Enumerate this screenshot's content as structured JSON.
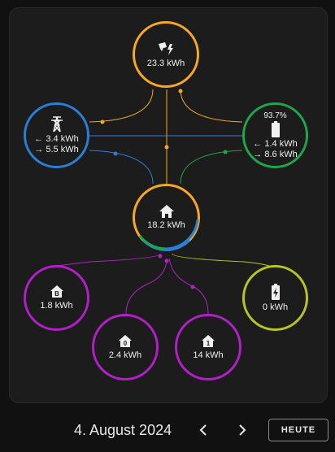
{
  "colors": {
    "solar": "#f6a823",
    "grid": "#2a7fd6",
    "battery": "#1fa64a",
    "home_individual": "#b21fc8",
    "home_small": "#b8c423",
    "background": "#1c1c1c"
  },
  "solar": {
    "icon": "solar-power-icon",
    "value": "23.3 kWh"
  },
  "grid": {
    "icon": "transmission-tower-icon",
    "import": "← 3.4 kWh",
    "export": "→ 5.5 kWh"
  },
  "battery": {
    "icon": "battery-icon",
    "percent": "93.7%",
    "in": "← 1.4 kWh",
    "out": "→ 8.6 kWh"
  },
  "home": {
    "icon": "home-icon",
    "value": "18.2 kWh"
  },
  "devices": [
    {
      "icon": "home-letter-b-icon",
      "value": "1.8 kWh"
    },
    {
      "icon": "home-letter-d-icon",
      "value": "2.4 kWh"
    },
    {
      "icon": "home-number-1-icon",
      "value": "14 kWh"
    },
    {
      "icon": "battery-charging-icon",
      "value": "0 kWh"
    }
  ],
  "footer": {
    "date": "4. August 2024",
    "prev_icon": "chevron-left-icon",
    "next_icon": "chevron-right-icon",
    "today_label": "HEUTE"
  }
}
